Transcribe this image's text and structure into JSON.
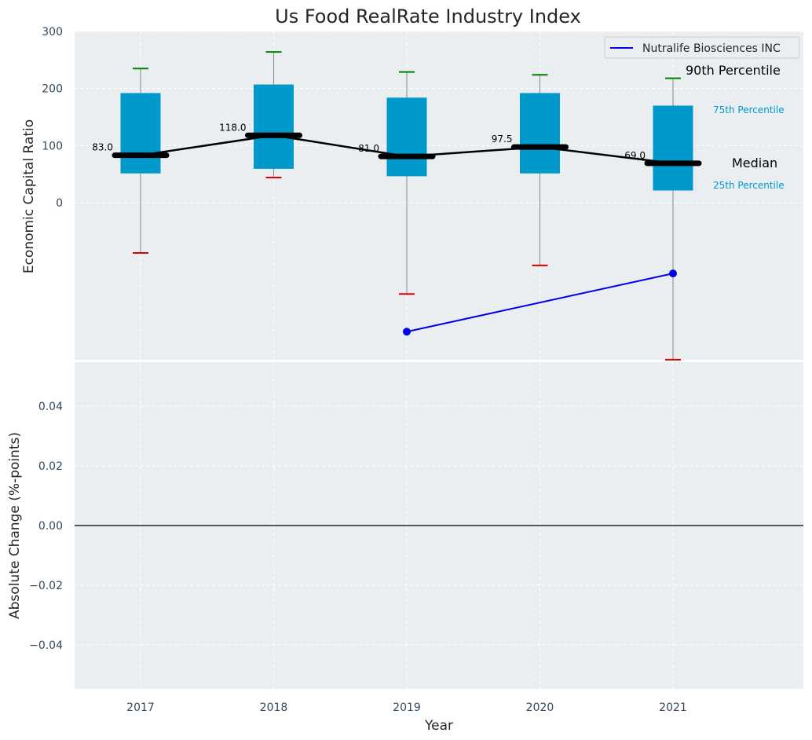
{
  "chart_data": [
    {
      "type": "box",
      "title": "Us Food RealRate Industry Index",
      "ylabel": "Economic Capital Ratio",
      "xlabel": "",
      "ylim": [
        -275,
        300
      ],
      "yticks": [
        0,
        100,
        200,
        300
      ],
      "categories": [
        "2017",
        "2018",
        "2019",
        "2020",
        "2021"
      ],
      "boxes": [
        {
          "year": "2017",
          "p10": -88,
          "p25": 52,
          "median": 83.0,
          "p75": 192,
          "p90": 235
        },
        {
          "year": "2018",
          "p10": 44,
          "p25": 60,
          "median": 118.0,
          "p75": 207,
          "p90": 264
        },
        {
          "year": "2019",
          "p10": -160,
          "p25": 47,
          "median": 81.0,
          "p75": 184,
          "p90": 229
        },
        {
          "year": "2020",
          "p10": -110,
          "p25": 52,
          "median": 97.5,
          "p75": 192,
          "p90": 224
        },
        {
          "year": "2021",
          "p10": -275,
          "p25": 22,
          "median": 69.0,
          "p75": 170,
          "p90": 218
        }
      ],
      "median_labels": [
        "83.0",
        "118.0",
        "81.0",
        "97.5",
        "69.0"
      ],
      "series": [
        {
          "name": "Nutralife Biosciences INC",
          "x": [
            "2019",
            "2021"
          ],
          "values": [
            -226,
            -124
          ],
          "color": "#0000ee"
        }
      ],
      "percentile_labels": {
        "p90": "90th Percentile",
        "p75": "75th Percentile",
        "median": "Median",
        "p25": "25th Percentile"
      },
      "legend_position": "top-right",
      "grid": true,
      "colors": {
        "box": "#0099cc",
        "median": "#000000",
        "whisker_top": "#008000",
        "whisker_bottom": "#dd0000",
        "background": "#eaeef0"
      }
    },
    {
      "type": "line",
      "title": "",
      "ylabel": "Absolute Change (%-points)",
      "xlabel": "Year",
      "ylim": [
        -0.055,
        0.055
      ],
      "yticks": [
        "0.04",
        "0.02",
        "0.00",
        "−0.02",
        "−0.04"
      ],
      "ytick_values": [
        0.04,
        0.02,
        0.0,
        -0.02,
        -0.04
      ],
      "categories": [
        "2017",
        "2018",
        "2019",
        "2020",
        "2021"
      ],
      "zero_line": true,
      "grid": true
    }
  ]
}
